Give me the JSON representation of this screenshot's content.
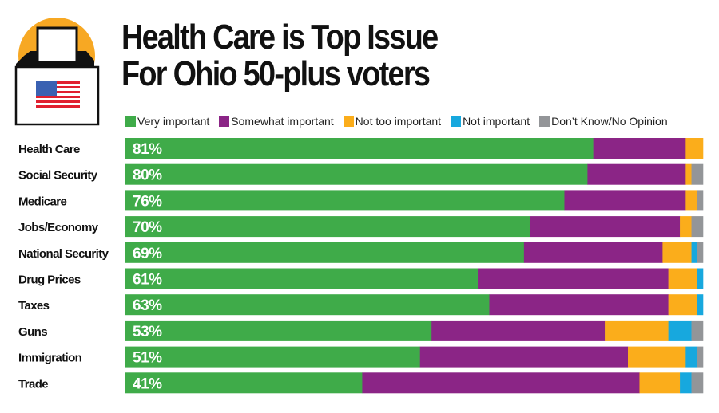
{
  "chart_data": {
    "type": "bar",
    "orientation": "horizontal",
    "stacked": true,
    "title": "Health Care is Top Issue For Ohio 50-plus voters",
    "title_lines": [
      "Health Care is Top Issue",
      "For Ohio 50-plus voters"
    ],
    "xlabel": "",
    "ylabel": "",
    "xlim": [
      0,
      100
    ],
    "grid": false,
    "legend_position": "top",
    "categories": [
      "Health Care",
      "Social Security",
      "Medicare",
      "Jobs/Economy",
      "National Security",
      "Drug Prices",
      "Taxes",
      "Guns",
      "Immigration",
      "Trade"
    ],
    "series": [
      {
        "name": "Very important",
        "color": "#3fab49",
        "values": [
          81,
          80,
          76,
          70,
          69,
          61,
          63,
          53,
          51,
          41
        ]
      },
      {
        "name": "Somewhat important",
        "color": "#8b2586",
        "values": [
          16,
          17,
          21,
          26,
          24,
          33,
          31,
          30,
          36,
          48
        ]
      },
      {
        "name": "Not too important",
        "color": "#fbad1b",
        "values": [
          3,
          1,
          2,
          2,
          5,
          5,
          5,
          11,
          10,
          7
        ]
      },
      {
        "name": "Not important",
        "color": "#17a8de",
        "values": [
          0,
          0,
          0,
          0,
          1,
          1,
          1,
          4,
          2,
          2
        ]
      },
      {
        "name": "Don’t Know/No Opinion",
        "color": "#939598",
        "values": [
          0,
          2,
          1,
          2,
          1,
          0,
          0,
          2,
          1,
          2
        ]
      }
    ],
    "data_labels": [
      "81%",
      "80%",
      "76%",
      "70%",
      "69%",
      "61%",
      "63%",
      "53%",
      "51%",
      "41%"
    ]
  },
  "icon": {
    "name": "ballot-box-icon",
    "sun_color": "#f7a823"
  }
}
